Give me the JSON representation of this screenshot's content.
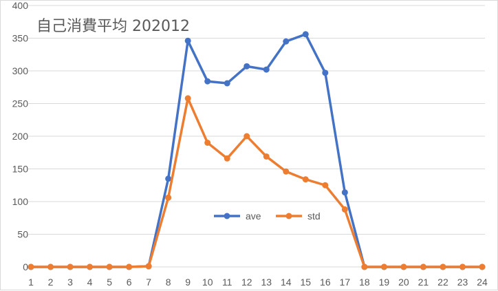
{
  "chart_data": {
    "type": "line",
    "title": "自己消費平均  202012",
    "categories": [
      "1",
      "2",
      "3",
      "4",
      "5",
      "6",
      "7",
      "8",
      "9",
      "10",
      "11",
      "12",
      "13",
      "14",
      "15",
      "16",
      "17",
      "18",
      "19",
      "20",
      "21",
      "22",
      "23",
      "24"
    ],
    "ylim": [
      0,
      400
    ],
    "yticks": [
      0,
      50,
      100,
      150,
      200,
      250,
      300,
      350,
      400
    ],
    "grid": true,
    "legend_position": "center-right",
    "series": [
      {
        "name": "ave",
        "color": "#4472c4",
        "values": [
          0,
          0,
          0,
          0,
          0,
          0,
          1,
          135,
          346,
          284,
          281,
          307,
          302,
          345,
          356,
          297,
          114,
          0,
          0,
          0,
          0,
          0,
          0,
          0
        ]
      },
      {
        "name": "std",
        "color": "#ed7d31",
        "values": [
          0,
          0,
          0,
          0,
          0,
          0,
          1,
          106,
          258,
          190,
          166,
          200,
          169,
          146,
          134,
          125,
          88,
          0,
          0,
          0,
          0,
          0,
          0,
          0
        ]
      }
    ]
  }
}
